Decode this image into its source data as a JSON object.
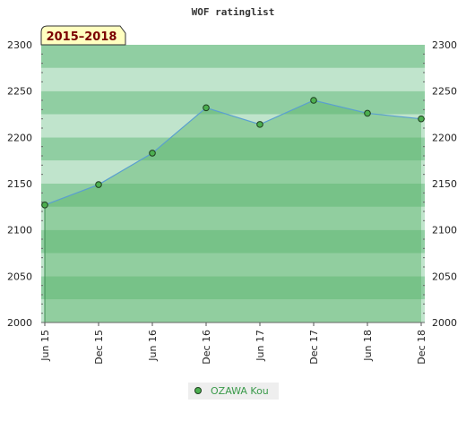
{
  "chart_data": {
    "type": "line",
    "title": "WOF ratinglist",
    "badge": "2015–2018",
    "categories": [
      "Jun 15",
      "Dec 15",
      "Jun 16",
      "Dec 16",
      "Jun 17",
      "Dec 17",
      "Jun 18",
      "Dec 18"
    ],
    "series": [
      {
        "name": "OZAWA Kou",
        "values": [
          2127,
          2149,
          2183,
          2232,
          2214,
          2240,
          2226,
          2220
        ]
      }
    ],
    "ylim": [
      2000,
      2300
    ],
    "yticks": [
      2000,
      2050,
      2100,
      2150,
      2200,
      2250,
      2300
    ],
    "xlabel": "",
    "ylabel": "",
    "legend_position": "bottom-center",
    "y_axis_both_sides": true,
    "colors": {
      "line": "#5a9fd0",
      "marker": "#4caf50",
      "area": "#58b368",
      "band_light": "#b5dfc3",
      "band_dark": "#7cc592",
      "legend_text": "#3a9a4a",
      "badge_fill": "#ffffc0",
      "badge_text": "#7a0000"
    }
  }
}
